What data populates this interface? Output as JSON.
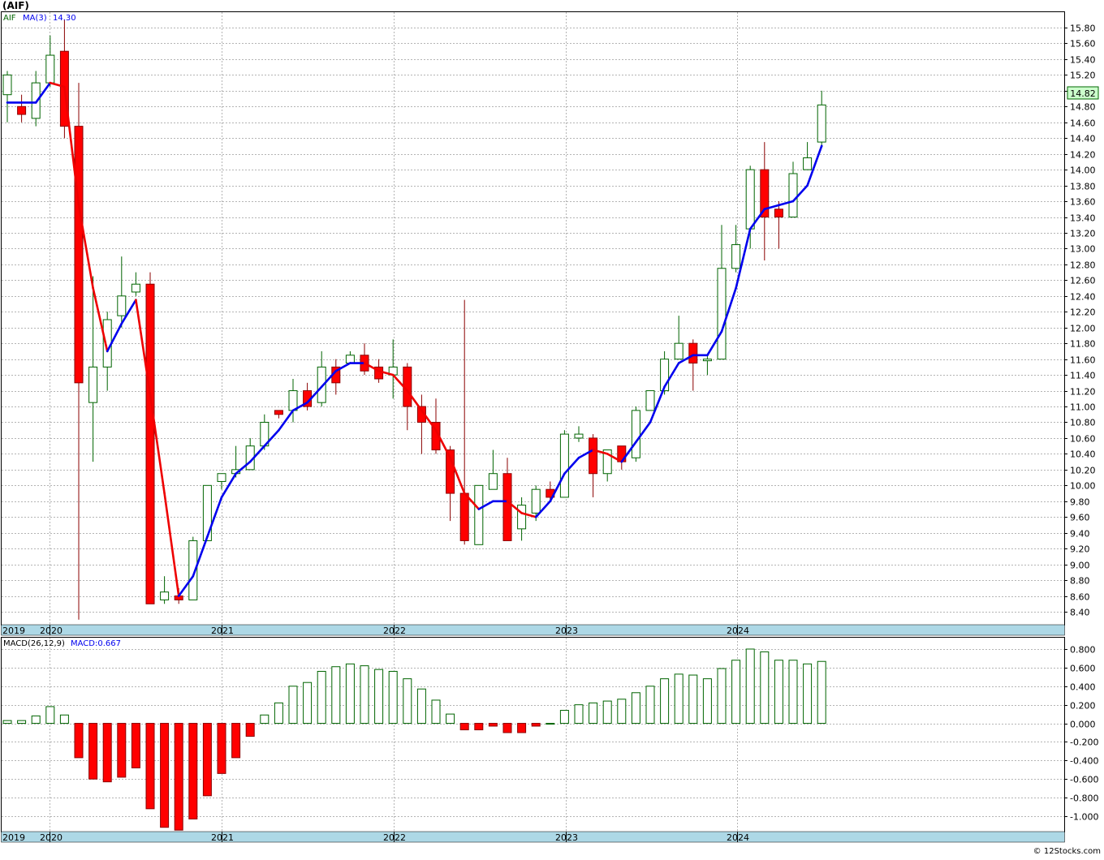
{
  "title": "(AIF)",
  "footer": "© 12Stocks.com",
  "price_panel": {
    "ticker": "AIF",
    "ma_label": "MA(3)",
    "ma_value": "14.30",
    "last_price": "14.82",
    "y_ticks": [
      "15.80",
      "15.60",
      "15.40",
      "15.20",
      "15.00",
      "14.80",
      "14.60",
      "14.40",
      "14.20",
      "14.00",
      "13.80",
      "13.60",
      "13.40",
      "13.20",
      "13.00",
      "12.80",
      "12.60",
      "12.40",
      "12.20",
      "12.00",
      "11.80",
      "11.60",
      "11.40",
      "11.20",
      "11.00",
      "10.80",
      "10.60",
      "10.40",
      "10.20",
      "10.00",
      "9.80",
      "9.60",
      "9.40",
      "9.20",
      "9.00",
      "8.80",
      "8.60",
      "8.40"
    ],
    "x_labels": [
      "2019",
      "2020",
      "2021",
      "2022",
      "2023",
      "2024"
    ]
  },
  "macd_panel": {
    "label": "MACD(26,12,9)",
    "value_label": "MACD:0.667",
    "y_ticks": [
      "0.800",
      "0.600",
      "0.400",
      "0.200",
      "0.000",
      "-0.200",
      "-0.400",
      "-0.600",
      "-0.800",
      "-1.000"
    ],
    "x_labels": [
      "2019",
      "2020",
      "2021",
      "2022",
      "2023",
      "2024"
    ]
  },
  "colors": {
    "up_candle_border": "#006400",
    "down_candle": "#ff0000",
    "ma_up": "#0000ee",
    "ma_down": "#ee0000",
    "axis_band": "#add8e6",
    "grid": "#b4b4b4",
    "last_price_bg": "#ccffcc"
  },
  "chart_data": [
    {
      "type": "candlestick",
      "interval": "monthly",
      "ylim": [
        8.3,
        15.95
      ],
      "grid": true,
      "candles": [
        {
          "o": 14.95,
          "h": 15.25,
          "l": 14.6,
          "c": 15.2
        },
        {
          "o": 14.8,
          "h": 14.95,
          "l": 14.6,
          "c": 14.7
        },
        {
          "o": 14.65,
          "h": 15.25,
          "l": 14.55,
          "c": 15.1
        },
        {
          "o": 15.1,
          "h": 15.7,
          "l": 15.05,
          "c": 15.45
        },
        {
          "o": 15.5,
          "h": 15.9,
          "l": 14.4,
          "c": 14.55
        },
        {
          "o": 14.55,
          "h": 15.1,
          "l": 8.3,
          "c": 11.3
        },
        {
          "o": 11.05,
          "h": 12.65,
          "l": 10.3,
          "c": 11.5
        },
        {
          "o": 11.5,
          "h": 12.2,
          "l": 11.2,
          "c": 12.1
        },
        {
          "o": 12.15,
          "h": 12.9,
          "l": 12.0,
          "c": 12.4
        },
        {
          "o": 12.45,
          "h": 12.7,
          "l": 12.4,
          "c": 12.55
        },
        {
          "o": 12.55,
          "h": 12.7,
          "l": 8.5,
          "c": 8.5
        },
        {
          "o": 8.55,
          "h": 8.85,
          "l": 8.5,
          "c": 8.65
        },
        {
          "o": 8.6,
          "h": 8.7,
          "l": 8.5,
          "c": 8.55
        },
        {
          "o": 8.55,
          "h": 9.35,
          "l": 8.55,
          "c": 9.3
        },
        {
          "o": 9.3,
          "h": 10.0,
          "l": 9.3,
          "c": 10.0
        },
        {
          "o": 10.05,
          "h": 10.15,
          "l": 9.95,
          "c": 10.15
        },
        {
          "o": 10.15,
          "h": 10.5,
          "l": 10.1,
          "c": 10.2
        },
        {
          "o": 10.2,
          "h": 10.6,
          "l": 10.2,
          "c": 10.5
        },
        {
          "o": 10.5,
          "h": 10.9,
          "l": 10.45,
          "c": 10.8
        },
        {
          "o": 10.95,
          "h": 10.95,
          "l": 10.85,
          "c": 10.9
        },
        {
          "o": 10.95,
          "h": 11.35,
          "l": 10.8,
          "c": 11.2
        },
        {
          "o": 11.2,
          "h": 11.3,
          "l": 10.95,
          "c": 11.0
        },
        {
          "o": 11.05,
          "h": 11.7,
          "l": 11.0,
          "c": 11.5
        },
        {
          "o": 11.5,
          "h": 11.6,
          "l": 11.15,
          "c": 11.3
        },
        {
          "o": 11.55,
          "h": 11.7,
          "l": 11.55,
          "c": 11.65
        },
        {
          "o": 11.65,
          "h": 11.8,
          "l": 11.4,
          "c": 11.45
        },
        {
          "o": 11.5,
          "h": 11.6,
          "l": 11.3,
          "c": 11.35
        },
        {
          "o": 11.4,
          "h": 11.85,
          "l": 11.1,
          "c": 11.5
        },
        {
          "o": 11.5,
          "h": 11.55,
          "l": 10.7,
          "c": 11.0
        },
        {
          "o": 11.0,
          "h": 11.15,
          "l": 10.4,
          "c": 10.8
        },
        {
          "o": 10.8,
          "h": 11.1,
          "l": 10.4,
          "c": 10.45
        },
        {
          "o": 10.45,
          "h": 10.5,
          "l": 9.55,
          "c": 9.9
        },
        {
          "o": 9.9,
          "h": 12.35,
          "l": 9.25,
          "c": 9.3
        },
        {
          "o": 9.25,
          "h": 10.0,
          "l": 9.25,
          "c": 10.0
        },
        {
          "o": 9.95,
          "h": 10.45,
          "l": 9.95,
          "c": 10.15
        },
        {
          "o": 10.15,
          "h": 10.35,
          "l": 9.3,
          "c": 9.3
        },
        {
          "o": 9.45,
          "h": 9.85,
          "l": 9.3,
          "c": 9.75
        },
        {
          "o": 9.65,
          "h": 10.0,
          "l": 9.55,
          "c": 9.95
        },
        {
          "o": 9.95,
          "h": 10.05,
          "l": 9.8,
          "c": 9.85
        },
        {
          "o": 9.85,
          "h": 10.7,
          "l": 9.85,
          "c": 10.65
        },
        {
          "o": 10.6,
          "h": 10.75,
          "l": 10.55,
          "c": 10.65
        },
        {
          "o": 10.6,
          "h": 10.65,
          "l": 9.85,
          "c": 10.15
        },
        {
          "o": 10.15,
          "h": 10.45,
          "l": 10.05,
          "c": 10.45
        },
        {
          "o": 10.5,
          "h": 10.5,
          "l": 10.2,
          "c": 10.3
        },
        {
          "o": 10.35,
          "h": 11.0,
          "l": 10.3,
          "c": 10.95
        },
        {
          "o": 10.95,
          "h": 11.2,
          "l": 10.95,
          "c": 11.2
        },
        {
          "o": 11.2,
          "h": 11.7,
          "l": 11.15,
          "c": 11.6
        },
        {
          "o": 11.6,
          "h": 12.15,
          "l": 11.6,
          "c": 11.8
        },
        {
          "o": 11.8,
          "h": 11.85,
          "l": 11.2,
          "c": 11.55
        },
        {
          "o": 11.6,
          "h": 11.65,
          "l": 11.4,
          "c": 11.6
        },
        {
          "o": 11.6,
          "h": 13.3,
          "l": 11.6,
          "c": 12.75
        },
        {
          "o": 12.75,
          "h": 13.3,
          "l": 12.7,
          "c": 13.05
        },
        {
          "o": 13.25,
          "h": 14.05,
          "l": 13.0,
          "c": 14.0
        },
        {
          "o": 14.0,
          "h": 14.35,
          "l": 12.85,
          "c": 13.4
        },
        {
          "o": 13.5,
          "h": 13.6,
          "l": 13.0,
          "c": 13.4
        },
        {
          "o": 13.4,
          "h": 14.1,
          "l": 13.4,
          "c": 13.95
        },
        {
          "o": 14.0,
          "h": 14.35,
          "l": 14.0,
          "c": 14.15
        },
        {
          "o": 14.35,
          "h": 15.0,
          "l": 14.3,
          "c": 14.82
        }
      ],
      "ma3": [
        14.85,
        14.85,
        14.85,
        15.1,
        15.05,
        13.55,
        12.5,
        11.7,
        12.05,
        12.35,
        11.15,
        9.9,
        8.6,
        8.85,
        9.35,
        9.85,
        10.15,
        10.3,
        10.5,
        10.7,
        10.95,
        11.05,
        11.25,
        11.45,
        11.55,
        11.55,
        11.45,
        11.4,
        11.2,
        10.95,
        10.7,
        10.35,
        9.9,
        9.7,
        9.8,
        9.8,
        9.65,
        9.6,
        9.8,
        10.15,
        10.35,
        10.45,
        10.4,
        10.3,
        10.55,
        10.8,
        11.25,
        11.55,
        11.65,
        11.65,
        11.95,
        12.5,
        13.25,
        13.5,
        13.55,
        13.6,
        13.8,
        14.3
      ]
    },
    {
      "type": "bar",
      "name": "MACD(26,12,9)",
      "ylim": [
        -1.15,
        0.88
      ],
      "values": [
        0.03,
        0.03,
        0.08,
        0.18,
        0.09,
        -0.37,
        -0.6,
        -0.63,
        -0.58,
        -0.48,
        -0.92,
        -1.12,
        -1.15,
        -1.03,
        -0.78,
        -0.54,
        -0.37,
        -0.14,
        0.09,
        0.22,
        0.4,
        0.44,
        0.56,
        0.61,
        0.64,
        0.62,
        0.58,
        0.56,
        0.48,
        0.37,
        0.25,
        0.1,
        -0.07,
        -0.07,
        -0.03,
        -0.1,
        -0.1,
        -0.03,
        0.0,
        0.14,
        0.2,
        0.22,
        0.24,
        0.26,
        0.33,
        0.4,
        0.48,
        0.53,
        0.52,
        0.48,
        0.59,
        0.68,
        0.8,
        0.77,
        0.68,
        0.68,
        0.64,
        0.667
      ]
    }
  ]
}
